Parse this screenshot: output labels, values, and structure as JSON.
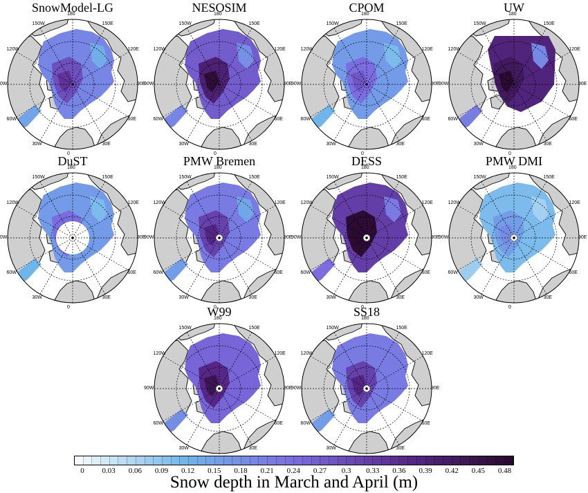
{
  "figure": {
    "panels": [
      {
        "title": "SnowModel-LG",
        "pattern": "full",
        "intensity": 0.55
      },
      {
        "title": "NESOSIM",
        "pattern": "full",
        "intensity": 0.75
      },
      {
        "title": "CPOM",
        "pattern": "full",
        "intensity": 0.45
      },
      {
        "title": "UW",
        "pattern": "partial",
        "intensity": 0.8
      },
      {
        "title": "DuST",
        "pattern": "hole",
        "intensity": 0.45
      },
      {
        "title": "PMW Bremen",
        "pattern": "pole",
        "intensity": 0.6
      },
      {
        "title": "DESS",
        "pattern": "pole",
        "intensity": 0.9
      },
      {
        "title": "PMW DMI",
        "pattern": "pole",
        "intensity": 0.3
      },
      {
        "title": "W99",
        "pattern": "uniform",
        "intensity": 0.7
      },
      {
        "title": "SS18",
        "pattern": "uniform",
        "intensity": 0.6
      }
    ],
    "longitude_labels": [
      "180",
      "150E",
      "120E",
      "90E",
      "60E",
      "30E",
      "0",
      "30W",
      "60W",
      "90W",
      "120W",
      "150W"
    ],
    "colorbar": {
      "label": "Snow depth in March and April (m)",
      "ticks": [
        "0",
        "0.03",
        "0.06",
        "0.09",
        "0.12",
        "0.15",
        "0.18",
        "0.21",
        "0.24",
        "0.27",
        "0.3",
        "0.33",
        "0.36",
        "0.39",
        "0.42",
        "0.45",
        "0.48"
      ],
      "min": 0,
      "max": 0.5,
      "step": 0.01,
      "colors": [
        "#f4fafd",
        "#6fb4ea",
        "#7b6ce0",
        "#5a2a8e",
        "#2a0a30"
      ]
    },
    "colors": {
      "land": "#cfcfcf",
      "ocean": "#ffffff",
      "coast": "#000000",
      "grid": "#000000"
    }
  }
}
